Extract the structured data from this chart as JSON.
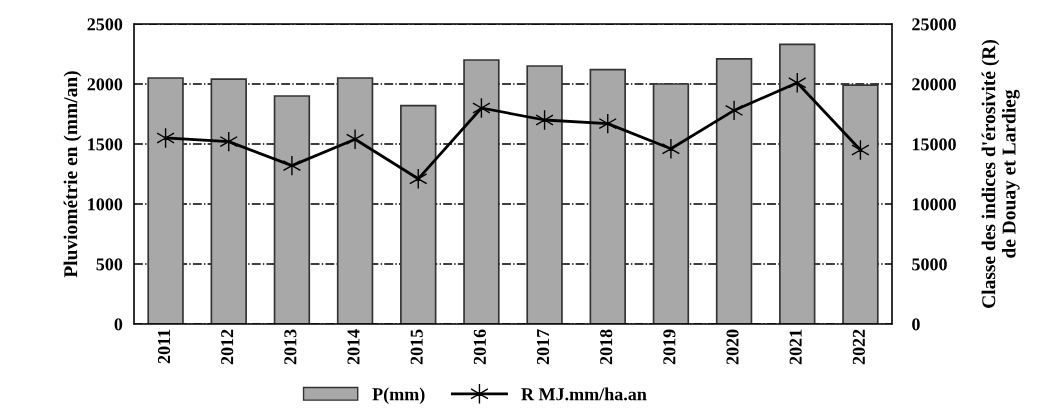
{
  "chart_data": {
    "type": "bar",
    "categories": [
      "2011",
      "2012",
      "2013",
      "2014",
      "2015",
      "2016",
      "2017",
      "2018",
      "2019",
      "2020",
      "2021",
      "2022"
    ],
    "series": [
      {
        "name": "P(mm)",
        "color": "#a8a8a8",
        "values": [
          2050,
          2040,
          1900,
          2050,
          1820,
          2200,
          2150,
          2120,
          2000,
          2210,
          2330,
          1990
        ]
      },
      {
        "name": "R MJ.mm/ha.an",
        "type": "line",
        "axis": "y2",
        "color": "#000000",
        "marker": "cross",
        "line_style": "solid",
        "values": [
          15500,
          15200,
          13200,
          15400,
          12100,
          18000,
          17000,
          16700,
          14600,
          17800,
          20100,
          14500
        ]
      }
    ],
    "ylabel": "Pluviométrie en (mm/an)",
    "y2label": "Classe des indices d'érosivité (R)\nde Douay et Lardieg",
    "ylim": [
      0,
      2500
    ],
    "yticks": [
      0,
      500,
      1000,
      1500,
      2000,
      2500
    ],
    "y2lim": [
      0,
      25000
    ],
    "y2ticks": [
      0,
      5000,
      10000,
      15000,
      20000,
      25000
    ],
    "grid": "y",
    "legend": "bottom"
  }
}
